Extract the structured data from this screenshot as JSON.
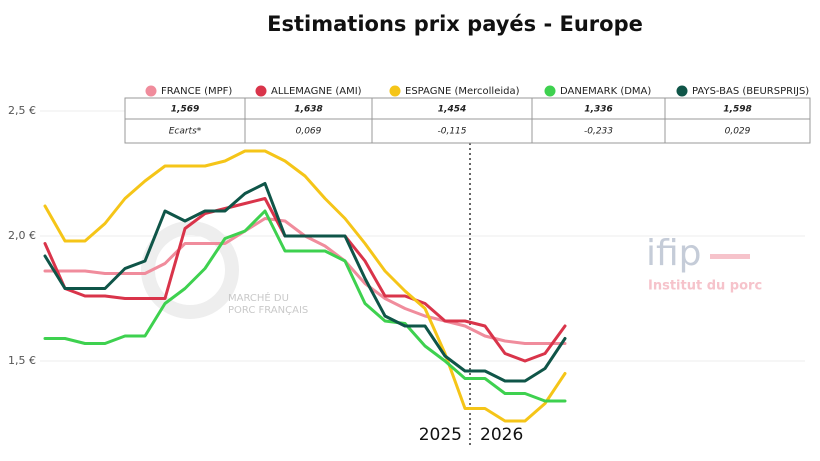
{
  "chart_data": {
    "type": "line",
    "title": "Estimations prix payés - Europe",
    "categories": [
      null,
      null,
      null,
      null,
      null,
      null,
      null,
      null,
      null,
      null,
      null,
      null,
      null,
      null,
      null,
      null,
      null,
      null,
      null,
      null,
      null,
      null,
      null,
      null,
      null,
      null,
      null
    ],
    "series": [
      {
        "name": "FRANCE (MPF)",
        "color": "#f08c9c",
        "values": [
          1.86,
          1.86,
          1.86,
          1.85,
          1.85,
          1.85,
          1.89,
          1.97,
          1.97,
          1.97,
          2.02,
          2.07,
          2.06,
          2.0,
          1.96,
          1.9,
          1.81,
          1.75,
          1.71,
          1.68,
          1.66,
          1.64,
          1.6,
          1.58,
          1.57,
          1.57,
          1.57
        ]
      },
      {
        "name": "ALLEMAGNE (AMI)",
        "color": "#d9344a",
        "values": [
          1.97,
          1.79,
          1.76,
          1.76,
          1.75,
          1.75,
          1.75,
          2.03,
          2.09,
          2.11,
          2.13,
          2.15,
          2.0,
          2.0,
          2.0,
          2.0,
          1.9,
          1.76,
          1.76,
          1.73,
          1.66,
          1.66,
          1.64,
          1.53,
          1.5,
          1.53,
          1.64
        ]
      },
      {
        "name": "ESPAGNE (Mercolleida)",
        "color": "#f5c518",
        "values": [
          2.12,
          1.98,
          1.98,
          2.05,
          2.15,
          2.22,
          2.28,
          2.28,
          2.28,
          2.3,
          2.34,
          2.34,
          2.3,
          2.24,
          2.15,
          2.07,
          1.97,
          1.86,
          1.78,
          1.71,
          1.53,
          1.31,
          1.31,
          1.26,
          1.26,
          1.33,
          1.45
        ]
      },
      {
        "name": "DANEMARK (DMA)",
        "color": "#3ed14f",
        "values": [
          1.59,
          1.59,
          1.57,
          1.57,
          1.6,
          1.6,
          1.73,
          1.79,
          1.87,
          1.99,
          2.02,
          2.1,
          1.94,
          1.94,
          1.94,
          1.9,
          1.73,
          1.66,
          1.65,
          1.56,
          1.5,
          1.43,
          1.43,
          1.37,
          1.37,
          1.34,
          1.34
        ]
      },
      {
        "name": "PAYS-BAS (BEURSPRIJS)",
        "color": "#0f5548",
        "values": [
          1.92,
          1.79,
          1.79,
          1.79,
          1.87,
          1.9,
          2.1,
          2.06,
          2.1,
          2.1,
          2.17,
          2.21,
          2.0,
          2.0,
          2.0,
          2.0,
          1.83,
          1.68,
          1.64,
          1.64,
          1.52,
          1.46,
          1.46,
          1.42,
          1.42,
          1.47,
          1.59
        ]
      }
    ],
    "ylim": [
      1.2,
      2.6
    ],
    "yticks": [
      {
        "value": 1.5,
        "label": "1,5 €"
      },
      {
        "value": 2.0,
        "label": "2,0 €"
      },
      {
        "value": 2.5,
        "label": "2,5 €"
      }
    ],
    "grid": true,
    "annotations": [
      "2025",
      "2026"
    ],
    "table": {
      "rows": [
        [
          "1,569",
          "1,638",
          "1,454",
          "1,336",
          "1,598"
        ],
        [
          "Ecarts*",
          "0,069",
          "-0,115",
          "-0,233",
          "0,029"
        ]
      ]
    },
    "watermarks": [
      "ifip",
      "Institut du porc",
      "MARCHÉ DU",
      "PORC FRANÇAIS"
    ]
  }
}
